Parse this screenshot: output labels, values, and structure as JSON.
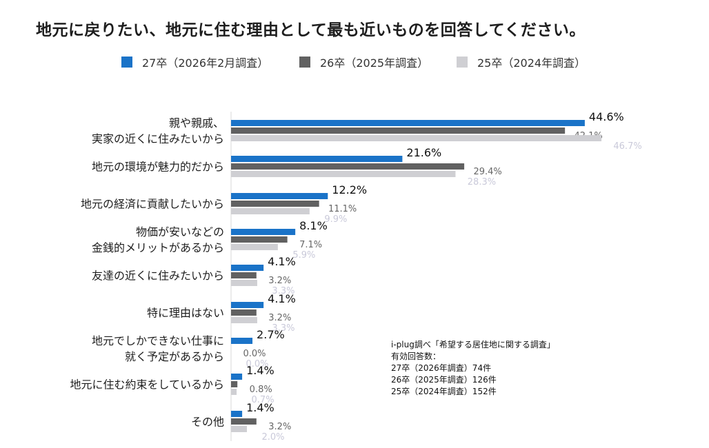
{
  "colors": {
    "s27": "#1a73c8",
    "s26": "#616161",
    "s25": "#cfcfd3",
    "label27": "#111111",
    "label26": "#666666",
    "label25": "#c9c9d9"
  },
  "chart_data": {
    "type": "bar",
    "orientation": "horizontal",
    "title": "地元に戻りたい、地元に住む理由として最も近いものを回答してください。",
    "legend_position": "top",
    "grid": false,
    "categories": [
      [
        "親や親戚、",
        "実家の近くに住みたいから"
      ],
      [
        "地元の環境が魅力的だから"
      ],
      [
        "地元の経済に貢献したいから"
      ],
      [
        "物価が安いなどの",
        "金銭的メリットがあるから"
      ],
      [
        "友達の近くに住みたいから"
      ],
      [
        "特に理由はない"
      ],
      [
        "地元でしかできない仕事に",
        "就く予定があるから"
      ],
      [
        "地元に住む約束をしているから"
      ],
      [
        "その他"
      ]
    ],
    "series": [
      {
        "name": "27卒（2026年2月調査）",
        "values": [
          44.6,
          21.6,
          12.2,
          8.1,
          4.1,
          4.1,
          2.7,
          1.4,
          1.4
        ],
        "labels": [
          "44.6%",
          "21.6%",
          "12.2%",
          "8.1%",
          "4.1%",
          "4.1%",
          "2.7%",
          "1.4%",
          "1.4%"
        ]
      },
      {
        "name": "26卒（2025年調査）",
        "values": [
          42.1,
          29.4,
          11.1,
          7.1,
          3.2,
          3.2,
          0.0,
          0.8,
          3.2
        ],
        "labels": [
          "42.1%",
          "29.4%",
          "11.1%",
          "7.1%",
          "3.2%",
          "3.2%",
          "0.0%",
          "0.8%",
          "3.2%"
        ]
      },
      {
        "name": "25卒（2024年調査）",
        "values": [
          46.7,
          28.3,
          9.9,
          5.9,
          3.3,
          3.3,
          0.0,
          0.7,
          2.0
        ],
        "labels": [
          "46.7%",
          "28.3%",
          "9.9%",
          "5.9%",
          "3.3%",
          "3.3%",
          "0.0%",
          "0.7%",
          "2.0%"
        ]
      }
    ],
    "xlim": [
      0,
      50
    ]
  },
  "source": {
    "line1": "i-plug調べ「希望する居住地に関する調査」",
    "line2": "有効回答数：",
    "line3": "27卒（2026年調査）74件",
    "line4": "26卒（2025年調査）126件",
    "line5": "25卒（2024年調査）152件"
  }
}
